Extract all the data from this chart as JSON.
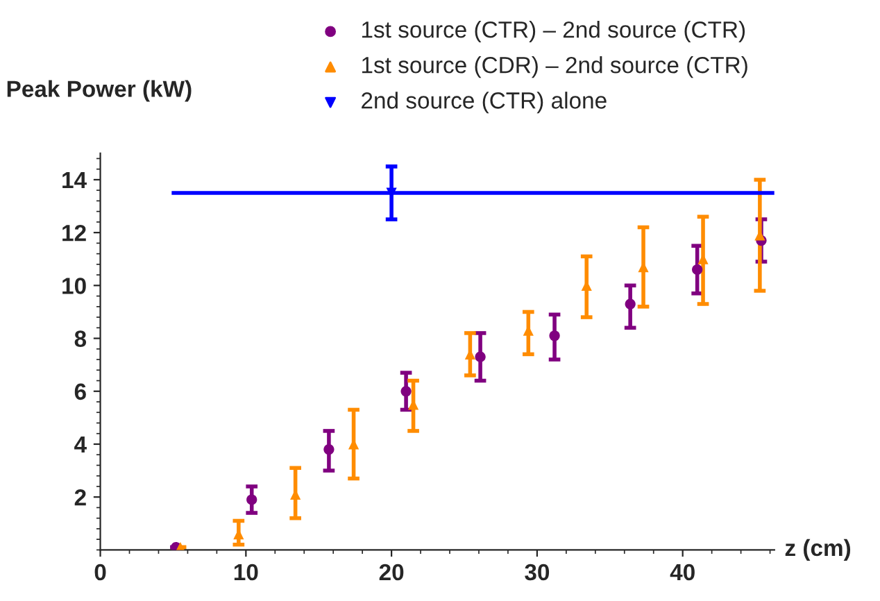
{
  "chart_data": {
    "type": "scatter",
    "ylabel": "Peak Power (kW)",
    "xlabel": "z (cm)",
    "xlim": [
      0,
      46.3
    ],
    "xticks": [
      0,
      10,
      20,
      30,
      40
    ],
    "ylim": [
      0,
      15
    ],
    "yticks": [
      2,
      4,
      6,
      8,
      10,
      12,
      14
    ],
    "grid": false,
    "legend": "top",
    "series": [
      {
        "name": "1st source (CTR) – 2nd source (CTR)",
        "color": "#800080",
        "marker": "circle",
        "x": [
          5.2,
          10.4,
          15.7,
          21.0,
          26.1,
          31.2,
          36.4,
          41.0,
          45.4
        ],
        "values": [
          0.1,
          1.9,
          3.8,
          6.0,
          7.3,
          8.1,
          9.3,
          10.6,
          11.7
        ],
        "errors": [
          null,
          [
            1.4,
            2.4
          ],
          [
            3.0,
            4.5
          ],
          [
            5.3,
            6.7
          ],
          [
            6.4,
            8.2
          ],
          [
            7.2,
            8.9
          ],
          [
            8.4,
            10.0
          ],
          [
            9.7,
            11.5
          ],
          [
            10.9,
            12.5
          ]
        ]
      },
      {
        "name": "1st source (CDR) – 2nd source (CTR)",
        "color": "#ff8c00",
        "marker": "triangle",
        "x": [
          5.5,
          9.5,
          13.4,
          17.4,
          21.5,
          25.4,
          29.4,
          33.4,
          37.3,
          41.4,
          45.3
        ],
        "values": [
          0.1,
          0.6,
          2.1,
          4.0,
          5.5,
          7.4,
          8.3,
          10.0,
          10.7,
          11.0,
          11.9
        ],
        "errors": [
          null,
          [
            0.2,
            1.1
          ],
          [
            1.2,
            3.1
          ],
          [
            2.7,
            5.3
          ],
          [
            4.5,
            6.4
          ],
          [
            6.6,
            8.2
          ],
          [
            7.4,
            9.0
          ],
          [
            8.8,
            11.1
          ],
          [
            9.2,
            12.2
          ],
          [
            9.3,
            12.6
          ],
          [
            9.8,
            14.0
          ]
        ]
      },
      {
        "name": "2nd source (CTR) alone",
        "color": "#0000ff",
        "marker": "triangle_down",
        "x": [
          20
        ],
        "values": [
          13.5
        ],
        "errors": [
          [
            12.5,
            14.5
          ]
        ],
        "xerrors": [
          [
            4.9,
            46.3
          ]
        ]
      }
    ]
  }
}
